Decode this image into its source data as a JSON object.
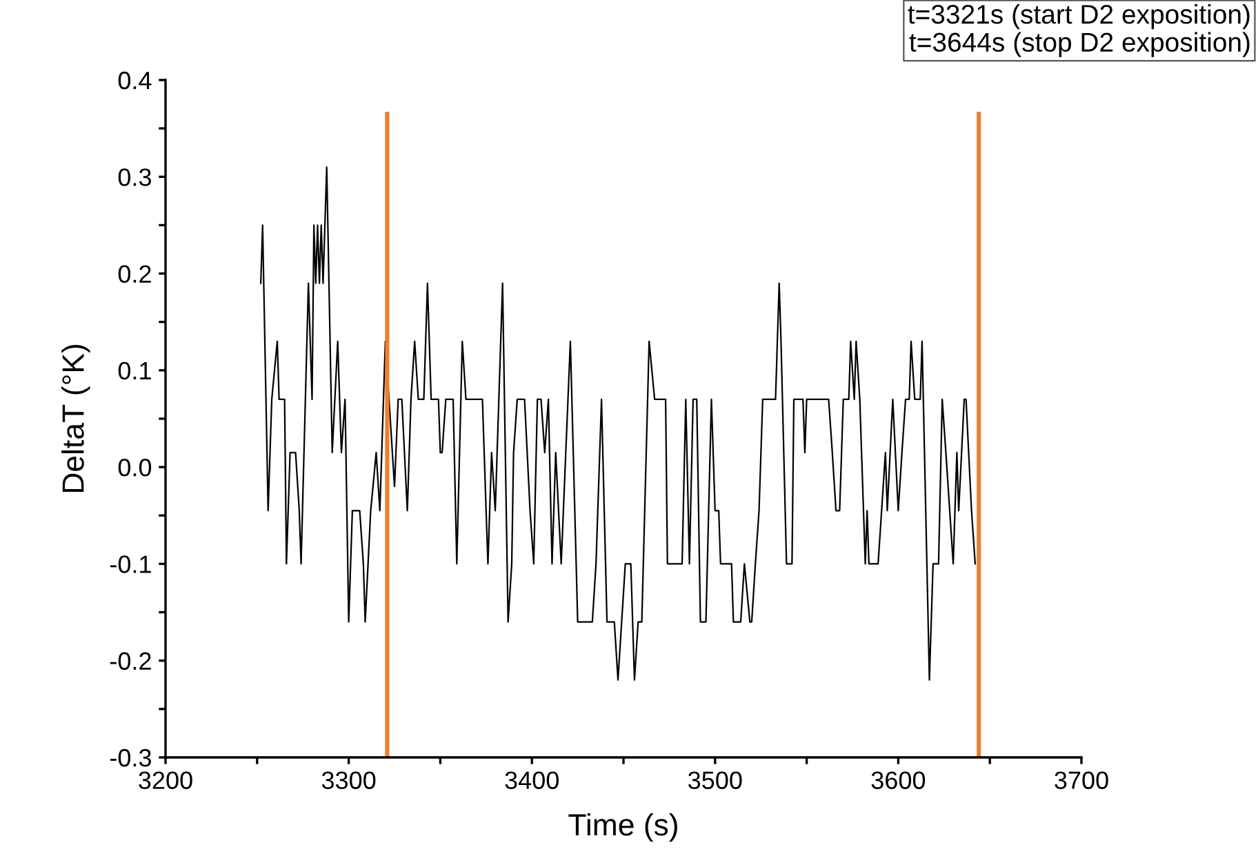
{
  "chart_data": {
    "type": "line",
    "xlabel": "Time (s)",
    "ylabel": "DeltaT (°K)",
    "xlim": [
      3200,
      3700
    ],
    "xticks": [
      3200,
      {
        "value": 3250,
        "label": null
      },
      3300,
      {
        "value": 3350,
        "label": null
      },
      3400,
      {
        "value": 3450,
        "label": null
      },
      3500,
      {
        "value": 3550,
        "label": null
      },
      3600,
      {
        "value": 3650,
        "label": null
      },
      3700
    ],
    "ylim": [
      -0.3,
      0.4
    ],
    "yticks": [
      {
        "value": -0.3,
        "label": "-0.3"
      },
      {
        "value": -0.25,
        "label": null
      },
      {
        "value": -0.2,
        "label": "-0.2"
      },
      {
        "value": -0.15,
        "label": null
      },
      {
        "value": -0.1,
        "label": "-0.1"
      },
      {
        "value": -0.05,
        "label": null
      },
      {
        "value": 0,
        "label": "0.0"
      },
      {
        "value": 0.05,
        "label": null
      },
      {
        "value": 0.1,
        "label": "0.1"
      },
      {
        "value": 0.15,
        "label": null
      },
      {
        "value": 0.2,
        "label": "0.2"
      },
      {
        "value": 0.25,
        "label": null
      },
      {
        "value": 0.3,
        "label": "0.3"
      },
      {
        "value": 0.35,
        "label": null
      },
      {
        "value": 0.4,
        "label": "0.4"
      }
    ],
    "grid": false,
    "legend": false,
    "marker": "none",
    "line_style": "solid",
    "series": [
      {
        "color": "#000000",
        "x": [
          3252,
          3253,
          3256,
          3258,
          3261,
          3262,
          3265,
          3266,
          3268,
          3271,
          3273,
          3274,
          3278,
          3280,
          3281,
          3282,
          3283,
          3284,
          3285,
          3286,
          3288,
          3291,
          3294,
          3296,
          3298,
          3300,
          3302,
          3306,
          3308,
          3309,
          3312,
          3315,
          3317,
          3320,
          3322,
          3325,
          3327,
          3329,
          3332,
          3334,
          3336,
          3338,
          3341,
          3343,
          3345,
          3349,
          3350,
          3351,
          3353,
          3357,
          3359,
          3362,
          3364,
          3373,
          3375,
          3376,
          3378,
          3380,
          3384,
          3387,
          3389,
          3390,
          3392,
          3396,
          3399,
          3401,
          3403,
          3405,
          3407,
          3409,
          3411,
          3413,
          3416,
          3421,
          3425,
          3433,
          3435,
          3438,
          3441,
          3445,
          3447,
          3449,
          3451,
          3454,
          3456,
          3458,
          3460,
          3464,
          3467,
          3473,
          3474,
          3482,
          3484,
          3486,
          3488,
          3490,
          3492,
          3495,
          3498,
          3500,
          3502,
          3503,
          3509,
          3510,
          3514,
          3516,
          3519,
          3520,
          3522,
          3524,
          3526,
          3533,
          3535,
          3536,
          3539,
          3542,
          3543,
          3548,
          3549,
          3550,
          3562,
          3564,
          3566,
          3568,
          3570,
          3573,
          3574,
          3576,
          3577,
          3579,
          3582,
          3583,
          3584,
          3589,
          3593,
          3594,
          3597,
          3600,
          3602,
          3604,
          3606,
          3607,
          3609,
          3612,
          3613,
          3617,
          3619,
          3622,
          3624,
          3626,
          3630,
          3632,
          3633,
          3636,
          3637,
          3640,
          3642
        ],
        "values": [
          0.19,
          0.25,
          -0.045,
          0.07,
          0.13,
          0.07,
          0.07,
          -0.1,
          0.015,
          0.015,
          -0.045,
          -0.1,
          0.19,
          0.07,
          0.25,
          0.19,
          0.25,
          0.19,
          0.25,
          0.19,
          0.31,
          0.015,
          0.13,
          0.015,
          0.07,
          -0.16,
          -0.045,
          -0.045,
          -0.1,
          -0.16,
          -0.045,
          0.015,
          -0.045,
          0.13,
          0.07,
          -0.02,
          0.07,
          0.07,
          -0.045,
          0.07,
          0.13,
          0.07,
          0.07,
          0.19,
          0.07,
          0.07,
          0.015,
          0.015,
          0.07,
          0.07,
          -0.1,
          0.13,
          0.07,
          0.07,
          -0.045,
          -0.1,
          0.015,
          -0.045,
          0.19,
          -0.16,
          -0.1,
          0.015,
          0.07,
          0.07,
          -0.045,
          -0.1,
          0.07,
          0.07,
          0.015,
          0.07,
          -0.1,
          0.015,
          -0.1,
          0.13,
          -0.16,
          -0.16,
          -0.1,
          0.07,
          -0.16,
          -0.16,
          -0.22,
          -0.16,
          -0.1,
          -0.1,
          -0.22,
          -0.16,
          -0.16,
          0.13,
          0.07,
          0.07,
          -0.1,
          -0.1,
          0.07,
          -0.1,
          0.07,
          0.07,
          -0.16,
          -0.16,
          0.07,
          -0.045,
          -0.045,
          -0.1,
          -0.1,
          -0.16,
          -0.16,
          -0.1,
          -0.16,
          -0.16,
          -0.1,
          -0.045,
          0.07,
          0.07,
          0.19,
          0.13,
          -0.1,
          -0.1,
          0.07,
          0.07,
          0.015,
          0.07,
          0.07,
          0.015,
          -0.045,
          -0.045,
          0.07,
          0.07,
          0.13,
          0.07,
          0.13,
          0.07,
          -0.1,
          -0.045,
          -0.1,
          -0.1,
          0.015,
          -0.045,
          0.07,
          -0.045,
          0.015,
          0.07,
          0.07,
          0.13,
          0.07,
          0.07,
          0.13,
          -0.22,
          -0.1,
          -0.1,
          0.07,
          0.015,
          -0.1,
          0.015,
          -0.045,
          0.07,
          0.07,
          -0.045,
          -0.1
        ]
      }
    ],
    "ref_lines": [
      {
        "axis": "x",
        "value": 3321,
        "color": "#ee7f2d",
        "line_style": "solid"
      },
      {
        "axis": "x",
        "value": 3644,
        "color": "#ee7f2d",
        "line_style": "solid"
      }
    ],
    "annotations": [
      "t=3321s (start D2 exposition)",
      "t=3644s (stop D2 exposition)"
    ]
  }
}
